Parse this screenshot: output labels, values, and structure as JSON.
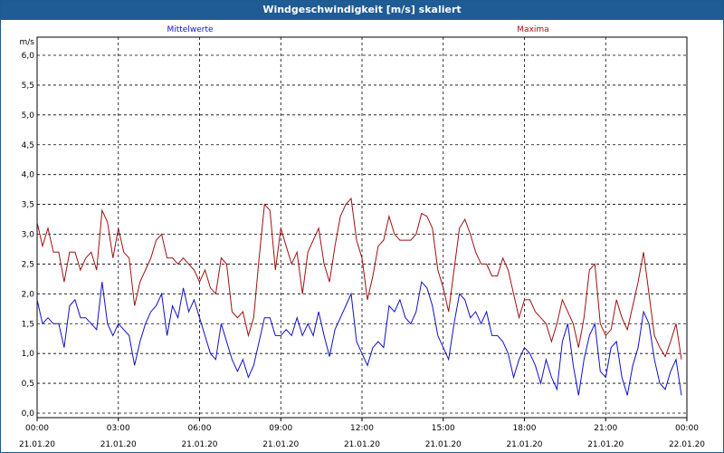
{
  "window": {
    "title": "Windgeschwindigkeit [m/s] skaliert"
  },
  "colors": {
    "series_mean": "#1010c8",
    "series_max": "#a01010",
    "titlebar": "#1f5b95"
  },
  "chart_data": {
    "type": "line",
    "title": "Windgeschwindigkeit [m/s] skaliert",
    "ylabel": "m/s",
    "ylim": [
      0,
      6.0
    ],
    "yticks": [
      "0,0",
      "0,5",
      "1,0",
      "1,5",
      "2,0",
      "2,5",
      "3,0",
      "3,5",
      "4,0",
      "4,5",
      "5,0",
      "5,5",
      "6,0"
    ],
    "xlim_hours": [
      0,
      24
    ],
    "xticks": [
      {
        "time": "00:00",
        "date": "21.01.20"
      },
      {
        "time": "03:00",
        "date": "21.01.20"
      },
      {
        "time": "06:00",
        "date": "21.01.20"
      },
      {
        "time": "09:00",
        "date": "21.01.20"
      },
      {
        "time": "12:00",
        "date": "21.01.20"
      },
      {
        "time": "15:00",
        "date": "21.01.20"
      },
      {
        "time": "18:00",
        "date": "21.01.20"
      },
      {
        "time": "21:00",
        "date": "21.01.20"
      },
      {
        "time": "00:00",
        "date": "22.01.20"
      }
    ],
    "grid": true,
    "series": [
      {
        "name": "Mittelwerte",
        "points": [
          [
            0.0,
            1.9
          ],
          [
            0.2,
            1.5
          ],
          [
            0.4,
            1.6
          ],
          [
            0.6,
            1.5
          ],
          [
            0.8,
            1.5
          ],
          [
            1.0,
            1.1
          ],
          [
            1.2,
            1.8
          ],
          [
            1.4,
            1.9
          ],
          [
            1.6,
            1.6
          ],
          [
            1.8,
            1.6
          ],
          [
            2.0,
            1.5
          ],
          [
            2.2,
            1.4
          ],
          [
            2.4,
            2.2
          ],
          [
            2.6,
            1.5
          ],
          [
            2.8,
            1.3
          ],
          [
            3.0,
            1.5
          ],
          [
            3.2,
            1.4
          ],
          [
            3.4,
            1.3
          ],
          [
            3.6,
            0.8
          ],
          [
            3.8,
            1.2
          ],
          [
            4.0,
            1.5
          ],
          [
            4.2,
            1.7
          ],
          [
            4.4,
            1.8
          ],
          [
            4.6,
            2.0
          ],
          [
            4.8,
            1.3
          ],
          [
            5.0,
            1.8
          ],
          [
            5.2,
            1.6
          ],
          [
            5.4,
            2.1
          ],
          [
            5.6,
            1.7
          ],
          [
            5.8,
            1.9
          ],
          [
            6.0,
            1.6
          ],
          [
            6.2,
            1.3
          ],
          [
            6.4,
            1.0
          ],
          [
            6.6,
            0.9
          ],
          [
            6.8,
            1.5
          ],
          [
            7.0,
            1.2
          ],
          [
            7.2,
            0.9
          ],
          [
            7.4,
            0.7
          ],
          [
            7.6,
            0.9
          ],
          [
            7.8,
            0.6
          ],
          [
            8.0,
            0.8
          ],
          [
            8.2,
            1.2
          ],
          [
            8.4,
            1.6
          ],
          [
            8.6,
            1.6
          ],
          [
            8.8,
            1.3
          ],
          [
            9.0,
            1.3
          ],
          [
            9.2,
            1.4
          ],
          [
            9.4,
            1.3
          ],
          [
            9.6,
            1.6
          ],
          [
            9.8,
            1.3
          ],
          [
            10.0,
            1.5
          ],
          [
            10.2,
            1.3
          ],
          [
            10.4,
            1.7
          ],
          [
            10.6,
            1.3
          ],
          [
            10.8,
            0.95
          ],
          [
            11.0,
            1.4
          ],
          [
            11.2,
            1.6
          ],
          [
            11.4,
            1.8
          ],
          [
            11.6,
            2.0
          ],
          [
            11.8,
            1.2
          ],
          [
            12.0,
            1.0
          ],
          [
            12.2,
            0.8
          ],
          [
            12.4,
            1.1
          ],
          [
            12.6,
            1.2
          ],
          [
            12.8,
            1.1
          ],
          [
            13.0,
            1.8
          ],
          [
            13.2,
            1.7
          ],
          [
            13.4,
            1.9
          ],
          [
            13.6,
            1.6
          ],
          [
            13.8,
            1.5
          ],
          [
            14.0,
            1.7
          ],
          [
            14.2,
            2.2
          ],
          [
            14.4,
            2.1
          ],
          [
            14.6,
            1.8
          ],
          [
            14.8,
            1.3
          ],
          [
            15.0,
            1.1
          ],
          [
            15.2,
            0.9
          ],
          [
            15.4,
            1.5
          ],
          [
            15.6,
            2.0
          ],
          [
            15.8,
            1.9
          ],
          [
            16.0,
            1.6
          ],
          [
            16.2,
            1.7
          ],
          [
            16.4,
            1.5
          ],
          [
            16.6,
            1.7
          ],
          [
            16.8,
            1.3
          ],
          [
            17.0,
            1.3
          ],
          [
            17.2,
            1.2
          ],
          [
            17.4,
            1.0
          ],
          [
            17.6,
            0.6
          ],
          [
            17.8,
            0.9
          ],
          [
            18.0,
            1.1
          ],
          [
            18.2,
            1.0
          ],
          [
            18.4,
            0.8
          ],
          [
            18.6,
            0.5
          ],
          [
            18.8,
            0.9
          ],
          [
            19.0,
            0.6
          ],
          [
            19.2,
            0.4
          ],
          [
            19.4,
            1.2
          ],
          [
            19.6,
            1.5
          ],
          [
            19.8,
            0.8
          ],
          [
            20.0,
            0.3
          ],
          [
            20.2,
            0.9
          ],
          [
            20.4,
            1.3
          ],
          [
            20.6,
            1.5
          ],
          [
            20.8,
            0.7
          ],
          [
            21.0,
            0.6
          ],
          [
            21.2,
            1.1
          ],
          [
            21.4,
            1.2
          ],
          [
            21.6,
            0.6
          ],
          [
            21.8,
            0.3
          ],
          [
            22.0,
            0.8
          ],
          [
            22.2,
            1.1
          ],
          [
            22.4,
            1.7
          ],
          [
            22.6,
            1.5
          ],
          [
            22.8,
            0.9
          ],
          [
            23.0,
            0.5
          ],
          [
            23.2,
            0.4
          ],
          [
            23.4,
            0.7
          ],
          [
            23.6,
            0.9
          ],
          [
            23.8,
            0.3
          ]
        ]
      },
      {
        "name": "Maxima",
        "points": [
          [
            0.0,
            3.2
          ],
          [
            0.2,
            2.8
          ],
          [
            0.4,
            3.1
          ],
          [
            0.6,
            2.7
          ],
          [
            0.8,
            2.7
          ],
          [
            1.0,
            2.2
          ],
          [
            1.2,
            2.7
          ],
          [
            1.4,
            2.7
          ],
          [
            1.6,
            2.4
          ],
          [
            1.8,
            2.6
          ],
          [
            2.0,
            2.7
          ],
          [
            2.2,
            2.4
          ],
          [
            2.4,
            3.4
          ],
          [
            2.6,
            3.2
          ],
          [
            2.8,
            2.6
          ],
          [
            3.0,
            3.1
          ],
          [
            3.2,
            2.7
          ],
          [
            3.4,
            2.6
          ],
          [
            3.6,
            1.8
          ],
          [
            3.8,
            2.2
          ],
          [
            4.0,
            2.4
          ],
          [
            4.2,
            2.6
          ],
          [
            4.4,
            2.9
          ],
          [
            4.6,
            3.0
          ],
          [
            4.8,
            2.6
          ],
          [
            5.0,
            2.6
          ],
          [
            5.2,
            2.5
          ],
          [
            5.4,
            2.6
          ],
          [
            5.6,
            2.5
          ],
          [
            5.8,
            2.4
          ],
          [
            6.0,
            2.2
          ],
          [
            6.2,
            2.4
          ],
          [
            6.4,
            2.1
          ],
          [
            6.6,
            2.0
          ],
          [
            6.8,
            2.6
          ],
          [
            7.0,
            2.5
          ],
          [
            7.2,
            1.7
          ],
          [
            7.4,
            1.6
          ],
          [
            7.6,
            1.7
          ],
          [
            7.8,
            1.3
          ],
          [
            8.0,
            1.6
          ],
          [
            8.2,
            2.6
          ],
          [
            8.4,
            3.5
          ],
          [
            8.6,
            3.4
          ],
          [
            8.8,
            2.4
          ],
          [
            9.0,
            3.1
          ],
          [
            9.2,
            2.8
          ],
          [
            9.4,
            2.5
          ],
          [
            9.6,
            2.7
          ],
          [
            9.8,
            2.0
          ],
          [
            10.0,
            2.7
          ],
          [
            10.2,
            2.9
          ],
          [
            10.4,
            3.1
          ],
          [
            10.6,
            2.5
          ],
          [
            10.8,
            2.2
          ],
          [
            11.0,
            2.8
          ],
          [
            11.2,
            3.3
          ],
          [
            11.4,
            3.5
          ],
          [
            11.6,
            3.6
          ],
          [
            11.8,
            2.9
          ],
          [
            12.0,
            2.6
          ],
          [
            12.2,
            1.9
          ],
          [
            12.4,
            2.3
          ],
          [
            12.6,
            2.8
          ],
          [
            12.8,
            2.9
          ],
          [
            13.0,
            3.3
          ],
          [
            13.2,
            3.0
          ],
          [
            13.4,
            2.9
          ],
          [
            13.6,
            2.9
          ],
          [
            13.8,
            2.9
          ],
          [
            14.0,
            3.0
          ],
          [
            14.2,
            3.35
          ],
          [
            14.4,
            3.3
          ],
          [
            14.6,
            3.1
          ],
          [
            14.8,
            2.4
          ],
          [
            15.0,
            2.1
          ],
          [
            15.2,
            1.7
          ],
          [
            15.4,
            2.4
          ],
          [
            15.6,
            3.1
          ],
          [
            15.8,
            3.25
          ],
          [
            16.0,
            3.0
          ],
          [
            16.2,
            2.7
          ],
          [
            16.4,
            2.5
          ],
          [
            16.6,
            2.5
          ],
          [
            16.8,
            2.3
          ],
          [
            17.0,
            2.3
          ],
          [
            17.2,
            2.6
          ],
          [
            17.4,
            2.4
          ],
          [
            17.6,
            2.0
          ],
          [
            17.8,
            1.6
          ],
          [
            18.0,
            1.9
          ],
          [
            18.2,
            1.9
          ],
          [
            18.4,
            1.7
          ],
          [
            18.6,
            1.6
          ],
          [
            18.8,
            1.5
          ],
          [
            19.0,
            1.2
          ],
          [
            19.2,
            1.5
          ],
          [
            19.4,
            1.9
          ],
          [
            19.6,
            1.7
          ],
          [
            19.8,
            1.5
          ],
          [
            20.0,
            1.1
          ],
          [
            20.2,
            1.6
          ],
          [
            20.4,
            2.4
          ],
          [
            20.6,
            2.5
          ],
          [
            20.8,
            1.5
          ],
          [
            21.0,
            1.3
          ],
          [
            21.2,
            1.4
          ],
          [
            21.4,
            1.9
          ],
          [
            21.6,
            1.6
          ],
          [
            21.8,
            1.4
          ],
          [
            22.0,
            1.8
          ],
          [
            22.2,
            2.2
          ],
          [
            22.4,
            2.7
          ],
          [
            22.6,
            2.0
          ],
          [
            22.8,
            1.3
          ],
          [
            23.0,
            1.1
          ],
          [
            23.2,
            0.95
          ],
          [
            23.4,
            1.2
          ],
          [
            23.6,
            1.5
          ],
          [
            23.8,
            0.9
          ]
        ]
      }
    ]
  }
}
